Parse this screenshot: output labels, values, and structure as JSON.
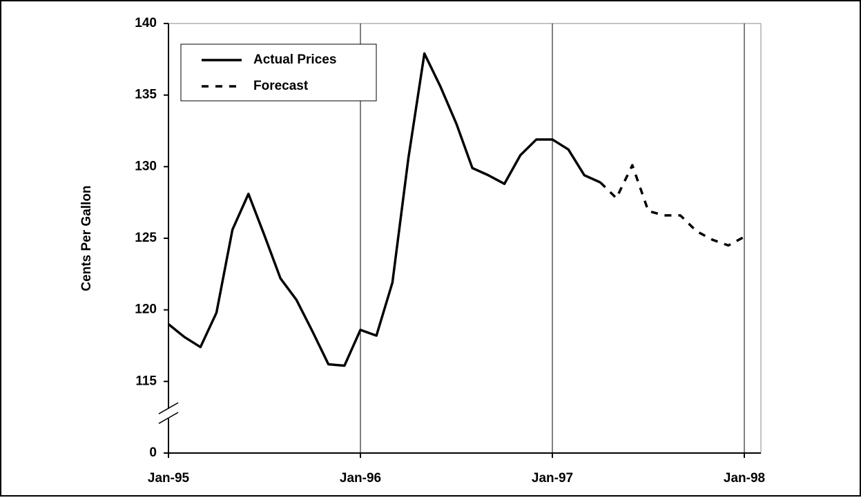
{
  "chart_data": {
    "type": "line",
    "y_label": "Cents Per Gallon",
    "categories": [
      "Jan-95",
      null,
      null,
      null,
      null,
      null,
      null,
      null,
      null,
      null,
      null,
      null,
      "Jan-96",
      null,
      null,
      null,
      null,
      null,
      null,
      null,
      null,
      null,
      null,
      null,
      "Jan-97",
      null,
      null,
      null,
      null,
      null,
      null,
      null,
      null,
      null,
      null,
      null,
      "Jan-98"
    ],
    "series": [
      {
        "name": "Actual Prices",
        "color": "#000000",
        "dash": "solid",
        "values": [
          119.0,
          118.1,
          117.4,
          119.8,
          125.6,
          128.1,
          125.2,
          122.2,
          120.7,
          118.5,
          116.2,
          116.1,
          118.6,
          118.2,
          121.9,
          130.6,
          137.9,
          135.6,
          133.0,
          129.9,
          129.4,
          128.8,
          130.8,
          131.9,
          131.9,
          131.2,
          129.4,
          128.9,
          null,
          null,
          null,
          null,
          null,
          null,
          null,
          null,
          null
        ]
      },
      {
        "name": "Forecast",
        "color": "#000000",
        "dash": "dashed",
        "values": [
          null,
          null,
          null,
          null,
          null,
          null,
          null,
          null,
          null,
          null,
          null,
          null,
          null,
          null,
          null,
          null,
          null,
          null,
          null,
          null,
          null,
          null,
          null,
          null,
          null,
          null,
          null,
          128.9,
          127.8,
          130.1,
          126.9,
          126.6,
          126.6,
          125.5,
          124.9,
          124.5,
          125.1
        ]
      }
    ],
    "ylim": [
      0,
      140
    ],
    "ybreak": [
      0,
      115
    ],
    "yticks": [
      0,
      115,
      120,
      125,
      130,
      135,
      140
    ],
    "xgrid": true,
    "legend": "top-left"
  }
}
